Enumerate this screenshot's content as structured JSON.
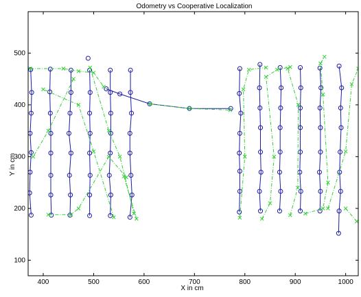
{
  "chart_data": {
    "type": "line",
    "title": "Odometry vs Cooperative Localization",
    "xlabel": "X in cm",
    "ylabel": "Y in cm",
    "xlim": [
      370,
      1025
    ],
    "ylim": [
      70,
      580
    ],
    "xticks": [
      400,
      500,
      600,
      700,
      800,
      900,
      1000
    ],
    "yticks": [
      100,
      200,
      300,
      400,
      500
    ],
    "grid": false,
    "series": [
      {
        "color": "#1a1aa6",
        "line_style": "solid",
        "marker": "circle",
        "points": [
          [
            376,
            187
          ],
          [
            373,
            230
          ],
          [
            374,
            270
          ],
          [
            376,
            308
          ],
          [
            374,
            345
          ],
          [
            376,
            384
          ],
          [
            377,
            424
          ],
          [
            375,
            468
          ],
          [
            414,
            469
          ],
          [
            413,
            425
          ],
          [
            414,
            384
          ],
          [
            415,
            345
          ],
          [
            415,
            307
          ],
          [
            415,
            264
          ],
          [
            415,
            226
          ],
          [
            416,
            187
          ],
          [
            453,
            187
          ],
          [
            454,
            226
          ],
          [
            452,
            264
          ],
          [
            455,
            307
          ],
          [
            451,
            345
          ],
          [
            453,
            384
          ],
          [
            455,
            424
          ],
          [
            455,
            467
          ],
          [
            492,
            467
          ],
          [
            493,
            424
          ],
          [
            492,
            384
          ],
          [
            493,
            345
          ],
          [
            492,
            307
          ],
          [
            493,
            264
          ],
          [
            492,
            226
          ],
          [
            492,
            186
          ],
          [
            533,
            186
          ],
          [
            534,
            226
          ],
          [
            531,
            264
          ],
          [
            533,
            307
          ],
          [
            534,
            345
          ],
          [
            534,
            384
          ],
          [
            533,
            424
          ],
          [
            533,
            467
          ],
          [
            573,
            467
          ],
          [
            573,
            424
          ],
          [
            575,
            384
          ],
          [
            572,
            345
          ],
          [
            572,
            307
          ],
          [
            574,
            264
          ],
          [
            576,
            226
          ],
          [
            572,
            183
          ],
          [
            489,
            490
          ],
          [
            525,
            431
          ],
          [
            552,
            421
          ],
          [
            611,
            402
          ],
          [
            690,
            393
          ],
          [
            772,
            393
          ],
          [
            789,
            193
          ],
          [
            790,
            233
          ],
          [
            790,
            272
          ],
          [
            789,
            307
          ],
          [
            790,
            345
          ],
          [
            792,
            384
          ],
          [
            789,
            422
          ],
          [
            790,
            470
          ],
          [
            830,
            478
          ],
          [
            829,
            433
          ],
          [
            830,
            394
          ],
          [
            831,
            356
          ],
          [
            831,
            309
          ],
          [
            832,
            270
          ],
          [
            829,
            233
          ],
          [
            831,
            195
          ],
          [
            869,
            195
          ],
          [
            871,
            233
          ],
          [
            869,
            270
          ],
          [
            870,
            309
          ],
          [
            870,
            356
          ],
          [
            871,
            394
          ],
          [
            872,
            433
          ],
          [
            870,
            472
          ],
          [
            910,
            472
          ],
          [
            911,
            433
          ],
          [
            910,
            394
          ],
          [
            910,
            356
          ],
          [
            910,
            309
          ],
          [
            909,
            270
          ],
          [
            911,
            233
          ],
          [
            910,
            195
          ],
          [
            949,
            195
          ],
          [
            950,
            233
          ],
          [
            948,
            270
          ],
          [
            950,
            309
          ],
          [
            950,
            356
          ],
          [
            949,
            394
          ],
          [
            951,
            433
          ],
          [
            949,
            471
          ],
          [
            987,
            475
          ],
          [
            992,
            433
          ],
          [
            990,
            394
          ],
          [
            991,
            356
          ],
          [
            989,
            309
          ],
          [
            988,
            270
          ],
          [
            990,
            233
          ],
          [
            987,
            195
          ],
          [
            986,
            152
          ]
        ],
        "segments": [
          [
            0,
            8
          ],
          [
            8,
            16
          ],
          [
            16,
            24
          ],
          [
            24,
            32
          ],
          [
            32,
            40
          ],
          [
            40,
            48
          ],
          [
            48,
            49
          ],
          [
            49,
            54
          ],
          [
            54,
            62
          ],
          [
            62,
            70
          ],
          [
            70,
            78
          ],
          [
            78,
            86
          ],
          [
            86,
            94
          ],
          [
            94,
            103
          ]
        ]
      },
      {
        "color": "#2fd02f",
        "line_style": "dashed",
        "marker": "x",
        "points": [
          [
            374,
            470
          ],
          [
            440,
            470
          ],
          [
            470,
            465
          ],
          [
            500,
            462
          ],
          [
            520,
            435
          ],
          [
            560,
            262
          ],
          [
            585,
            180
          ],
          [
            540,
            183
          ],
          [
            500,
            310
          ],
          [
            470,
            400
          ],
          [
            400,
            430
          ],
          [
            410,
            188
          ],
          [
            455,
            188
          ],
          [
            470,
            200
          ],
          [
            530,
            300
          ],
          [
            565,
            260
          ],
          [
            460,
            450
          ],
          [
            410,
            350
          ],
          [
            380,
            300
          ],
          [
            493,
            472
          ],
          [
            530,
            350
          ],
          [
            552,
            300
          ],
          [
            580,
            190
          ],
          [
            612,
            402
          ],
          [
            690,
            393
          ],
          [
            771,
            390
          ],
          [
            790,
            182
          ],
          [
            800,
            300
          ],
          [
            797,
            430
          ],
          [
            808,
            468
          ],
          [
            842,
            472
          ],
          [
            834,
            180
          ],
          [
            850,
            210
          ],
          [
            858,
            300
          ],
          [
            842,
            454
          ],
          [
            864,
            468
          ],
          [
            890,
            473
          ],
          [
            890,
            187
          ],
          [
            905,
            240
          ],
          [
            906,
            400
          ],
          [
            885,
            470
          ],
          [
            920,
            190
          ],
          [
            955,
            200
          ],
          [
            965,
            250
          ],
          [
            955,
            420
          ],
          [
            950,
            480
          ],
          [
            958,
            493
          ],
          [
            965,
            200
          ],
          [
            1000,
            310
          ],
          [
            1012,
            440
          ],
          [
            1025,
            470
          ],
          [
            1000,
            200
          ],
          [
            1022,
            175
          ]
        ],
        "segments": [
          [
            0,
            5
          ],
          [
            5,
            7
          ],
          [
            7,
            11
          ],
          [
            11,
            16
          ],
          [
            16,
            19
          ],
          [
            19,
            23
          ],
          [
            23,
            26
          ],
          [
            26,
            31
          ],
          [
            31,
            37
          ],
          [
            37,
            41
          ],
          [
            41,
            47
          ],
          [
            47,
            51
          ],
          [
            51,
            53
          ]
        ]
      }
    ]
  }
}
